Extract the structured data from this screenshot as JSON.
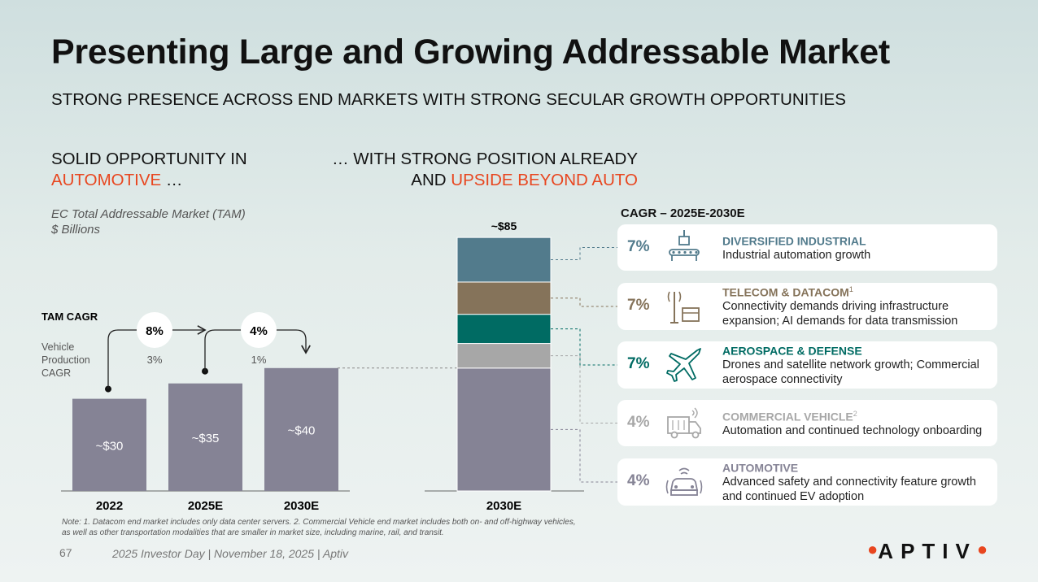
{
  "title": "Presenting Large and Growing Addressable Market",
  "subtitle": "STRONG PRESENCE ACROSS END MARKETS WITH STRONG SECULAR GROWTH OPPORTUNITIES",
  "left_heading": {
    "line1": "SOLID OPPORTUNITY IN",
    "highlight": "AUTOMOTIVE",
    "suffix": " …"
  },
  "right_heading": {
    "line1": "… WITH STRONG POSITION ALREADY",
    "prefix": "AND ",
    "highlight": "UPSIDE BEYOND AUTO"
  },
  "tam_label": {
    "line1": "EC Total Addressable Market (TAM)",
    "line2": "$ Billions"
  },
  "tam_cagr_label": "TAM CAGR",
  "vehicle_cagr_label": [
    "Vehicle",
    "Production",
    "CAGR"
  ],
  "cagr_header": "CAGR – 2025E-2030E",
  "chart_data": [
    {
      "type": "bar",
      "title": "EC Total Addressable Market (TAM)",
      "ylabel": "$ Billions",
      "ylim": [
        0,
        90
      ],
      "categories": [
        "2022",
        "2025E",
        "2030E"
      ],
      "values": [
        30,
        35,
        40
      ],
      "value_labels": [
        "~$30",
        "~$35",
        "~$40"
      ],
      "tam_cagr": [
        "8%",
        "4%"
      ],
      "vehicle_production_cagr": [
        "3%",
        "1%"
      ],
      "color": "#858395"
    },
    {
      "type": "bar",
      "stacked": true,
      "ylim": [
        0,
        90
      ],
      "categories": [
        "2030E"
      ],
      "total_label": "~$85",
      "series": [
        {
          "name": "Automotive",
          "value": 40,
          "color": "#858395"
        },
        {
          "name": "Commercial Vehicle",
          "value": 8,
          "color": "#a7a7a7"
        },
        {
          "name": "Aerospace & Defense",
          "value": 9.5,
          "color": "#006b63"
        },
        {
          "name": "Telecom & Datacom",
          "value": 10.5,
          "color": "#85735a"
        },
        {
          "name": "Diversified Industrial",
          "value": 14.5,
          "color": "#527b8c"
        }
      ]
    }
  ],
  "segments": [
    {
      "pct": "7%",
      "title": "DIVERSIFIED INDUSTRIAL",
      "sup": "",
      "desc": "Industrial automation growth",
      "color": "#527b8c",
      "icon": "conveyor-robot-icon"
    },
    {
      "pct": "7%",
      "title": "TELECOM & DATACOM",
      "sup": "1",
      "desc": "Connectivity demands driving infrastructure expansion; AI demands for data transmission",
      "color": "#85735a",
      "icon": "cell-tower-icon"
    },
    {
      "pct": "7%",
      "title": "AEROSPACE & DEFENSE",
      "sup": "",
      "desc": "Drones and satellite network growth; Commercial aerospace connectivity",
      "color": "#006b63",
      "icon": "airplane-icon"
    },
    {
      "pct": "4%",
      "title": "COMMERCIAL VEHICLE",
      "sup": "2",
      "desc": "Automation and continued technology onboarding",
      "color": "#a7a7a7",
      "icon": "truck-icon"
    },
    {
      "pct": "4%",
      "title": "AUTOMOTIVE",
      "sup": "",
      "desc": "Advanced safety and connectivity feature growth and continued EV adoption",
      "color": "#858395",
      "icon": "connected-car-icon"
    }
  ],
  "note": "Note: 1. Datacom end market includes only data center servers. 2. Commercial Vehicle end market includes both on- and off-highway vehicles, as well as other transportation modalities that are smaller in market size, including marine, rail, and transit.",
  "footer": {
    "page": "67",
    "text": "2025 Investor Day | November 18, 2025 | Aptiv"
  },
  "logo": "APTIV"
}
